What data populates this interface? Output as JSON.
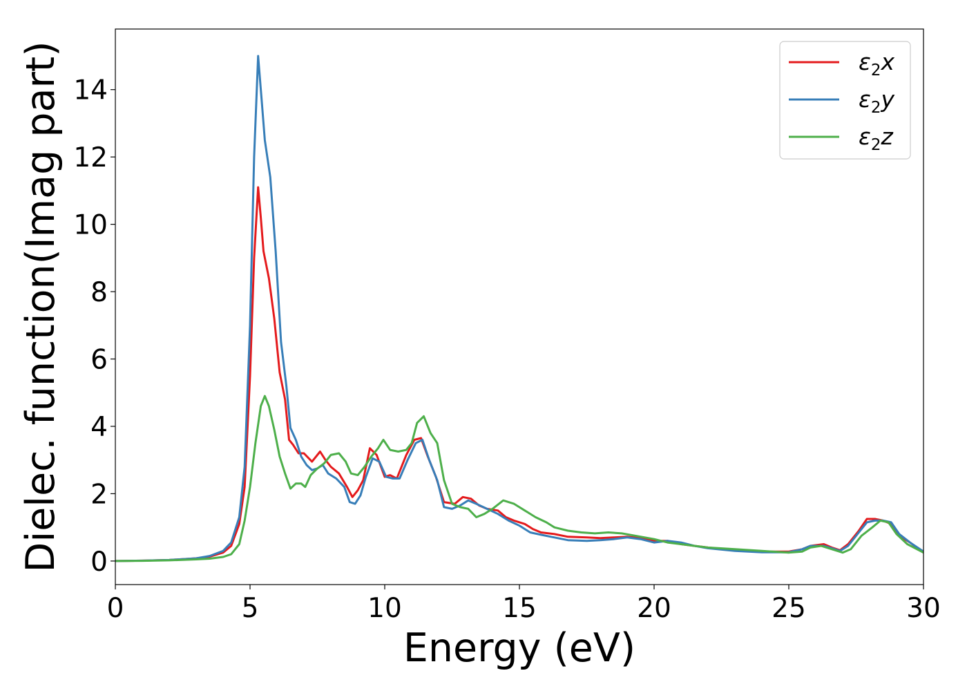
{
  "chart_data": {
    "type": "line",
    "title": "",
    "xlabel": "Energy (eV)",
    "ylabel": "Dielec. function(Imag part)",
    "xlim": [
      0,
      30
    ],
    "ylim": [
      -0.7,
      15.8
    ],
    "xticks": [
      0,
      5,
      10,
      15,
      20,
      25,
      30
    ],
    "yticks": [
      0,
      2,
      4,
      6,
      8,
      10,
      12,
      14
    ],
    "grid": false,
    "legend_position": "top-right",
    "series": [
      {
        "name": "ε2x",
        "legend_base": "ε",
        "legend_sub": "2",
        "legend_suffix": "x",
        "color": "#e41a1c",
        "points": [
          [
            0,
            0.0
          ],
          [
            1,
            0.01
          ],
          [
            2,
            0.03
          ],
          [
            3,
            0.08
          ],
          [
            3.5,
            0.13
          ],
          [
            4,
            0.25
          ],
          [
            4.3,
            0.45
          ],
          [
            4.6,
            1.1
          ],
          [
            4.8,
            2.2
          ],
          [
            5.0,
            5.5
          ],
          [
            5.15,
            9.0
          ],
          [
            5.3,
            11.1
          ],
          [
            5.4,
            10.2
          ],
          [
            5.5,
            9.2
          ],
          [
            5.7,
            8.4
          ],
          [
            5.9,
            7.2
          ],
          [
            6.1,
            5.6
          ],
          [
            6.3,
            4.8
          ],
          [
            6.45,
            3.6
          ],
          [
            6.6,
            3.45
          ],
          [
            6.8,
            3.2
          ],
          [
            7.0,
            3.2
          ],
          [
            7.3,
            2.95
          ],
          [
            7.6,
            3.25
          ],
          [
            7.8,
            3.0
          ],
          [
            8.0,
            2.8
          ],
          [
            8.3,
            2.6
          ],
          [
            8.6,
            2.2
          ],
          [
            8.8,
            1.9
          ],
          [
            9.0,
            2.1
          ],
          [
            9.2,
            2.4
          ],
          [
            9.45,
            3.35
          ],
          [
            9.7,
            3.15
          ],
          [
            10.0,
            2.5
          ],
          [
            10.2,
            2.55
          ],
          [
            10.45,
            2.45
          ],
          [
            10.8,
            3.15
          ],
          [
            11.1,
            3.6
          ],
          [
            11.35,
            3.65
          ],
          [
            11.6,
            3.1
          ],
          [
            11.9,
            2.5
          ],
          [
            12.2,
            1.75
          ],
          [
            12.6,
            1.7
          ],
          [
            12.9,
            1.9
          ],
          [
            13.2,
            1.85
          ],
          [
            13.5,
            1.65
          ],
          [
            13.8,
            1.55
          ],
          [
            14.2,
            1.5
          ],
          [
            14.5,
            1.3
          ],
          [
            14.8,
            1.2
          ],
          [
            15.2,
            1.1
          ],
          [
            15.5,
            0.95
          ],
          [
            15.8,
            0.85
          ],
          [
            16.3,
            0.8
          ],
          [
            16.8,
            0.72
          ],
          [
            17.5,
            0.7
          ],
          [
            18.0,
            0.68
          ],
          [
            18.5,
            0.7
          ],
          [
            19.0,
            0.72
          ],
          [
            19.5,
            0.68
          ],
          [
            20.0,
            0.6
          ],
          [
            20.5,
            0.6
          ],
          [
            21.0,
            0.5
          ],
          [
            21.5,
            0.45
          ],
          [
            22.0,
            0.4
          ],
          [
            23.0,
            0.32
          ],
          [
            24.0,
            0.28
          ],
          [
            25.0,
            0.28
          ],
          [
            25.5,
            0.35
          ],
          [
            25.8,
            0.45
          ],
          [
            26.3,
            0.5
          ],
          [
            26.6,
            0.4
          ],
          [
            26.9,
            0.32
          ],
          [
            27.2,
            0.5
          ],
          [
            27.6,
            0.9
          ],
          [
            27.9,
            1.25
          ],
          [
            28.2,
            1.25
          ],
          [
            28.5,
            1.2
          ],
          [
            28.8,
            1.1
          ],
          [
            29.1,
            0.75
          ],
          [
            29.5,
            0.55
          ],
          [
            30,
            0.25
          ]
        ]
      },
      {
        "name": "ε2y",
        "legend_base": "ε",
        "legend_sub": "2",
        "legend_suffix": "y",
        "color": "#377eb8",
        "points": [
          [
            0,
            0.0
          ],
          [
            1,
            0.01
          ],
          [
            2,
            0.03
          ],
          [
            3,
            0.08
          ],
          [
            3.5,
            0.15
          ],
          [
            4,
            0.3
          ],
          [
            4.3,
            0.55
          ],
          [
            4.6,
            1.3
          ],
          [
            4.8,
            2.8
          ],
          [
            5.0,
            7.0
          ],
          [
            5.15,
            12.0
          ],
          [
            5.3,
            15.0
          ],
          [
            5.42,
            13.8
          ],
          [
            5.55,
            12.5
          ],
          [
            5.75,
            11.4
          ],
          [
            5.95,
            9.2
          ],
          [
            6.15,
            6.5
          ],
          [
            6.35,
            5.2
          ],
          [
            6.5,
            3.95
          ],
          [
            6.7,
            3.6
          ],
          [
            6.9,
            3.1
          ],
          [
            7.1,
            2.85
          ],
          [
            7.3,
            2.7
          ],
          [
            7.5,
            2.75
          ],
          [
            7.7,
            2.85
          ],
          [
            7.9,
            2.6
          ],
          [
            8.2,
            2.45
          ],
          [
            8.5,
            2.2
          ],
          [
            8.7,
            1.75
          ],
          [
            8.9,
            1.7
          ],
          [
            9.1,
            1.95
          ],
          [
            9.3,
            2.5
          ],
          [
            9.55,
            3.05
          ],
          [
            9.8,
            2.95
          ],
          [
            10.05,
            2.5
          ],
          [
            10.3,
            2.45
          ],
          [
            10.55,
            2.45
          ],
          [
            10.85,
            3.0
          ],
          [
            11.15,
            3.5
          ],
          [
            11.4,
            3.6
          ],
          [
            11.65,
            3.0
          ],
          [
            11.95,
            2.4
          ],
          [
            12.2,
            1.6
          ],
          [
            12.5,
            1.55
          ],
          [
            12.8,
            1.65
          ],
          [
            13.1,
            1.8
          ],
          [
            13.4,
            1.7
          ],
          [
            13.8,
            1.55
          ],
          [
            14.2,
            1.4
          ],
          [
            14.6,
            1.2
          ],
          [
            15.0,
            1.05
          ],
          [
            15.4,
            0.85
          ],
          [
            15.8,
            0.78
          ],
          [
            16.3,
            0.7
          ],
          [
            16.8,
            0.62
          ],
          [
            17.5,
            0.6
          ],
          [
            18.0,
            0.62
          ],
          [
            18.5,
            0.65
          ],
          [
            19.0,
            0.7
          ],
          [
            19.5,
            0.65
          ],
          [
            20.0,
            0.55
          ],
          [
            20.5,
            0.6
          ],
          [
            21.0,
            0.55
          ],
          [
            21.5,
            0.45
          ],
          [
            22.0,
            0.38
          ],
          [
            23.0,
            0.3
          ],
          [
            24.0,
            0.26
          ],
          [
            25.0,
            0.26
          ],
          [
            25.5,
            0.35
          ],
          [
            25.8,
            0.45
          ],
          [
            26.3,
            0.45
          ],
          [
            26.6,
            0.38
          ],
          [
            26.9,
            0.3
          ],
          [
            27.2,
            0.45
          ],
          [
            27.6,
            0.85
          ],
          [
            27.9,
            1.15
          ],
          [
            28.2,
            1.2
          ],
          [
            28.5,
            1.2
          ],
          [
            28.8,
            1.15
          ],
          [
            29.1,
            0.8
          ],
          [
            29.5,
            0.55
          ],
          [
            30,
            0.28
          ]
        ]
      },
      {
        "name": "ε2z",
        "legend_base": "ε",
        "legend_sub": "2",
        "legend_suffix": "z",
        "color": "#4daf4a",
        "points": [
          [
            0,
            0.0
          ],
          [
            1,
            0.005
          ],
          [
            2,
            0.02
          ],
          [
            3,
            0.05
          ],
          [
            3.5,
            0.07
          ],
          [
            4,
            0.12
          ],
          [
            4.3,
            0.2
          ],
          [
            4.6,
            0.5
          ],
          [
            4.8,
            1.2
          ],
          [
            5.0,
            2.2
          ],
          [
            5.2,
            3.5
          ],
          [
            5.4,
            4.6
          ],
          [
            5.55,
            4.9
          ],
          [
            5.7,
            4.6
          ],
          [
            5.9,
            3.9
          ],
          [
            6.1,
            3.1
          ],
          [
            6.3,
            2.6
          ],
          [
            6.5,
            2.15
          ],
          [
            6.7,
            2.3
          ],
          [
            6.9,
            2.3
          ],
          [
            7.05,
            2.2
          ],
          [
            7.25,
            2.55
          ],
          [
            7.5,
            2.75
          ],
          [
            7.75,
            2.9
          ],
          [
            8.0,
            3.15
          ],
          [
            8.3,
            3.2
          ],
          [
            8.55,
            2.95
          ],
          [
            8.75,
            2.6
          ],
          [
            9.0,
            2.55
          ],
          [
            9.25,
            2.8
          ],
          [
            9.5,
            3.1
          ],
          [
            9.75,
            3.35
          ],
          [
            9.95,
            3.6
          ],
          [
            10.2,
            3.3
          ],
          [
            10.5,
            3.25
          ],
          [
            10.8,
            3.3
          ],
          [
            11.0,
            3.5
          ],
          [
            11.2,
            4.1
          ],
          [
            11.45,
            4.3
          ],
          [
            11.7,
            3.8
          ],
          [
            11.95,
            3.5
          ],
          [
            12.2,
            2.4
          ],
          [
            12.5,
            1.7
          ],
          [
            12.8,
            1.6
          ],
          [
            13.1,
            1.55
          ],
          [
            13.4,
            1.3
          ],
          [
            13.7,
            1.4
          ],
          [
            14.0,
            1.55
          ],
          [
            14.4,
            1.8
          ],
          [
            14.8,
            1.7
          ],
          [
            15.2,
            1.5
          ],
          [
            15.6,
            1.3
          ],
          [
            16.0,
            1.15
          ],
          [
            16.3,
            1.0
          ],
          [
            16.8,
            0.9
          ],
          [
            17.3,
            0.85
          ],
          [
            17.8,
            0.82
          ],
          [
            18.3,
            0.85
          ],
          [
            18.8,
            0.82
          ],
          [
            19.3,
            0.75
          ],
          [
            20.0,
            0.65
          ],
          [
            20.5,
            0.55
          ],
          [
            21.0,
            0.5
          ],
          [
            21.5,
            0.45
          ],
          [
            22.0,
            0.4
          ],
          [
            23.0,
            0.35
          ],
          [
            24.0,
            0.3
          ],
          [
            25.0,
            0.25
          ],
          [
            25.5,
            0.28
          ],
          [
            25.8,
            0.4
          ],
          [
            26.2,
            0.45
          ],
          [
            26.6,
            0.35
          ],
          [
            27.0,
            0.25
          ],
          [
            27.3,
            0.35
          ],
          [
            27.7,
            0.75
          ],
          [
            28.1,
            1.0
          ],
          [
            28.4,
            1.2
          ],
          [
            28.7,
            1.15
          ],
          [
            29.0,
            0.8
          ],
          [
            29.4,
            0.5
          ],
          [
            30,
            0.25
          ]
        ]
      }
    ]
  }
}
